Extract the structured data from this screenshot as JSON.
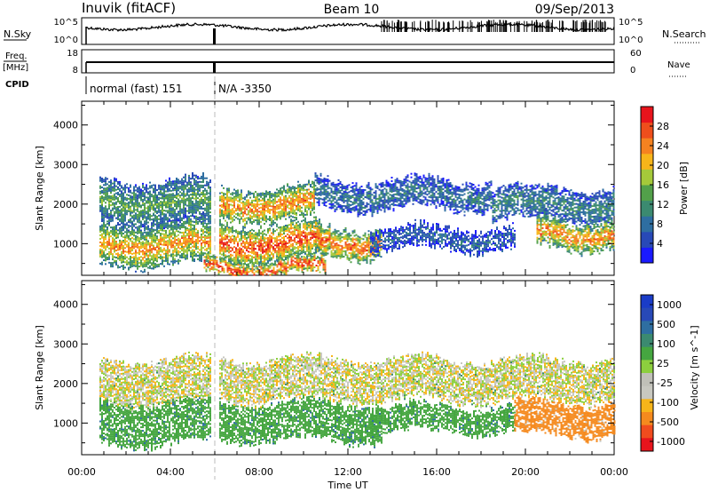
{
  "header": {
    "station": "Inuvik (fitACF)",
    "beam": "Beam 10",
    "date": "09/Sep/2013"
  },
  "top_panels": {
    "nsky_label": "N.Sky",
    "nsky_ticks": [
      "10^5",
      "10^0"
    ],
    "nsearch_label": "N.Search",
    "nsearch_ticks": [
      "10^5",
      "10^0"
    ],
    "freq_label": "Freq.",
    "freq_unit": "[MHz]",
    "freq_ticks": [
      "18",
      "8"
    ],
    "nave_label": "Nave",
    "nave_ticks": [
      "60",
      "0"
    ],
    "cpid_label": "CPID",
    "cpid_segments": [
      {
        "start_hour": 0.2,
        "label": "normal (fast) 151"
      },
      {
        "start_hour": 6.0,
        "label": "N/A -3350"
      }
    ]
  },
  "x_axis": {
    "label": "Time UT",
    "ticks": [
      "00:00",
      "04:00",
      "08:00",
      "12:00",
      "16:00",
      "20:00",
      "00:00"
    ],
    "range_hours": [
      0,
      24
    ]
  },
  "colors": {
    "power_scale": [
      "#1a1aff",
      "#2849b7",
      "#2e6ea1",
      "#3b8a70",
      "#52a04a",
      "#a5c93a",
      "#f7b51a",
      "#f58220",
      "#ee4e1c",
      "#e8141c"
    ],
    "velocity_scale": [
      "#e8141c",
      "#f04c1e",
      "#f58a1e",
      "#f7b51a",
      "#c8c8c0",
      "#c0c0b8",
      "#8ccf3e",
      "#45a640",
      "#3b8a70",
      "#2e6ea1",
      "#2849b7",
      "#1a3cc8"
    ]
  },
  "chart_data": [
    {
      "type": "heatmap",
      "panel": "power",
      "ylabel": "Slant Range [km]",
      "y_ticks": [
        "1000",
        "2000",
        "3000",
        "4000"
      ],
      "ylim": [
        200,
        4600
      ],
      "colorbar_label": "Power [dB]",
      "colorbar_ticks": [
        "4",
        "8",
        "12",
        "16",
        "20",
        "24",
        "28"
      ],
      "colorbar_range": [
        0,
        32
      ],
      "bands": [
        {
          "start_hour": 0.8,
          "end_hour": 5.8,
          "range_from": 1500,
          "range_to": 2600,
          "level": 0.45
        },
        {
          "start_hour": 0.8,
          "end_hour": 5.8,
          "range_from": 500,
          "range_to": 1500,
          "level": 0.75
        },
        {
          "start_hour": 6.2,
          "end_hour": 10.5,
          "range_from": 1600,
          "range_to": 2400,
          "level": 0.8
        },
        {
          "start_hour": 6.2,
          "end_hour": 10.8,
          "range_from": 600,
          "range_to": 1500,
          "level": 0.9
        },
        {
          "start_hour": 10.5,
          "end_hour": 13.5,
          "range_from": 700,
          "range_to": 1400,
          "level": 0.85
        },
        {
          "start_hour": 10.5,
          "end_hour": 18.5,
          "range_from": 1900,
          "range_to": 2600,
          "level": 0.3
        },
        {
          "start_hour": 13.0,
          "end_hour": 19.5,
          "range_from": 900,
          "range_to": 1400,
          "level": 0.25
        },
        {
          "start_hour": 18.5,
          "end_hour": 24.0,
          "range_from": 1600,
          "range_to": 2400,
          "level": 0.35
        },
        {
          "start_hour": 20.5,
          "end_hour": 24.0,
          "range_from": 900,
          "range_to": 1600,
          "level": 0.8
        },
        {
          "start_hour": 5.5,
          "end_hour": 11.0,
          "range_from": 200,
          "range_to": 600,
          "level": 0.95
        }
      ]
    },
    {
      "type": "heatmap",
      "panel": "velocity",
      "ylabel": "Slant Range [km]",
      "y_ticks": [
        "1000",
        "2000",
        "3000",
        "4000"
      ],
      "ylim": [
        200,
        4600
      ],
      "colorbar_label": "Velocity [m s^-1]",
      "colorbar_ticks": [
        "1000",
        "500",
        "100",
        "25",
        "-25",
        "-100",
        "-500",
        "-1000"
      ],
      "bands": [
        {
          "start_hour": 0.8,
          "end_hour": 5.8,
          "range_from": 1500,
          "range_to": 2600,
          "velocity": 0
        },
        {
          "start_hour": 0.8,
          "end_hour": 5.8,
          "range_from": 500,
          "range_to": 1500,
          "velocity": 200
        },
        {
          "start_hour": 6.2,
          "end_hour": 13.5,
          "range_from": 600,
          "range_to": 1500,
          "velocity": 300
        },
        {
          "start_hour": 6.2,
          "end_hour": 24.0,
          "range_from": 1600,
          "range_to": 2600,
          "velocity": 0
        },
        {
          "start_hour": 13.0,
          "end_hour": 19.5,
          "range_from": 800,
          "range_to": 1400,
          "velocity": 250
        },
        {
          "start_hour": 19.5,
          "end_hour": 24.0,
          "range_from": 700,
          "range_to": 1500,
          "velocity": -200
        }
      ]
    }
  ]
}
